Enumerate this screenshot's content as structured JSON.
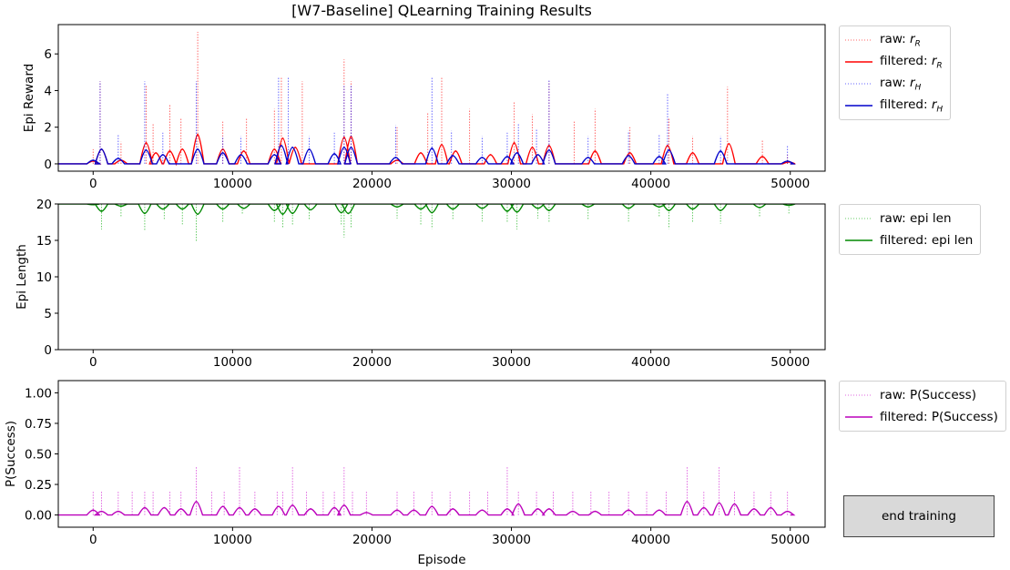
{
  "figure": {
    "title": "[W7-Baseline] QLearning Training Results",
    "button_label": "end training",
    "xlabel": "Episode"
  },
  "chart_data": [
    {
      "type": "line",
      "ylabel": "Epi Reward",
      "xlim": [
        -2500,
        52500
      ],
      "ylim": [
        -0.4,
        7.6
      ],
      "xticks": [
        0,
        10000,
        20000,
        30000,
        40000,
        50000
      ],
      "yticks": [
        0,
        2,
        4,
        6
      ],
      "grid": false,
      "legend_position": "outside-right",
      "legend": [
        "raw: r_R",
        "filtered: r_R",
        "raw: r_H",
        "filtered: r_H"
      ],
      "series": [
        {
          "name": "raw: r_R",
          "color": "#ff0000",
          "style": "dotted",
          "x": [
            0,
            500,
            2000,
            3800,
            4300,
            5500,
            6300,
            7500,
            9300,
            11000,
            13000,
            13500,
            15000,
            18000,
            18500,
            21800,
            24000,
            25000,
            27000,
            30200,
            31500,
            32700,
            34500,
            36000,
            38500,
            41300,
            43000,
            45500,
            48000,
            49800
          ],
          "y": [
            0.8,
            4.5,
            1.2,
            4.3,
            2.2,
            3.2,
            2.5,
            7.2,
            2.3,
            2.5,
            3.0,
            4.7,
            4.5,
            5.7,
            4.5,
            2.0,
            2.8,
            4.7,
            3.0,
            3.4,
            2.7,
            4.5,
            2.3,
            3.0,
            2.0,
            2.5,
            1.5,
            4.2,
            1.3,
            0.5
          ]
        },
        {
          "name": "filtered: r_R",
          "color": "#ff0000",
          "style": "solid",
          "x": [
            0,
            600,
            2000,
            3800,
            4500,
            5500,
            6400,
            7500,
            9300,
            10800,
            13000,
            13600,
            14500,
            18000,
            18500,
            21800,
            23500,
            25000,
            26000,
            28500,
            30200,
            31500,
            32700,
            36000,
            38500,
            41200,
            43000,
            45600,
            48000,
            49900
          ],
          "y": [
            0.15,
            0.8,
            0.2,
            1.15,
            0.6,
            0.7,
            0.8,
            1.6,
            0.8,
            0.7,
            0.8,
            1.4,
            0.9,
            1.45,
            1.5,
            0.2,
            0.6,
            1.05,
            0.7,
            0.5,
            1.15,
            0.9,
            1.0,
            0.7,
            0.6,
            1.0,
            0.6,
            1.1,
            0.4,
            0.1
          ]
        },
        {
          "name": "raw: r_H",
          "color": "#0000ff",
          "style": "dotted",
          "x": [
            500,
            1800,
            3700,
            5000,
            7400,
            9300,
            10600,
            13300,
            14000,
            15500,
            17300,
            18000,
            18500,
            21700,
            24300,
            25700,
            27900,
            29700,
            30500,
            31800,
            32700,
            35500,
            38400,
            40600,
            41200,
            45000,
            49800
          ],
          "y": [
            4.5,
            1.6,
            4.5,
            1.7,
            4.5,
            1.5,
            1.5,
            4.7,
            4.7,
            1.5,
            1.7,
            4.3,
            4.3,
            2.1,
            4.7,
            1.8,
            1.5,
            1.7,
            2.2,
            1.9,
            4.6,
            1.5,
            1.8,
            1.6,
            3.8,
            1.5,
            1.0
          ]
        },
        {
          "name": "filtered: r_H",
          "color": "#0000cc",
          "style": "solid",
          "x": [
            0,
            600,
            1800,
            3800,
            5000,
            7500,
            9300,
            10600,
            13000,
            13500,
            14300,
            15500,
            17300,
            18000,
            18500,
            21700,
            24300,
            25800,
            27900,
            29700,
            30400,
            31900,
            32700,
            35500,
            38400,
            40600,
            41300,
            45000,
            49800
          ],
          "y": [
            0.2,
            0.8,
            0.3,
            0.75,
            0.5,
            0.8,
            0.6,
            0.5,
            0.5,
            1.0,
            0.9,
            0.8,
            0.55,
            0.9,
            0.9,
            0.35,
            0.85,
            0.45,
            0.35,
            0.4,
            0.6,
            0.5,
            0.75,
            0.35,
            0.45,
            0.4,
            0.75,
            0.7,
            0.15
          ]
        }
      ]
    },
    {
      "type": "line",
      "ylabel": "Epi Length",
      "xlim": [
        -2500,
        52500
      ],
      "ylim": [
        0,
        20
      ],
      "xticks": [
        0,
        10000,
        20000,
        30000,
        40000,
        50000
      ],
      "yticks": [
        0,
        5,
        10,
        15,
        20
      ],
      "grid": false,
      "legend_position": "outside-right",
      "legend": [
        "raw: epi len",
        "filtered: epi len"
      ],
      "series": [
        {
          "name": "raw: epi len",
          "color": "#00aa00",
          "style": "dotted",
          "x": [
            600,
            2000,
            3700,
            5100,
            6400,
            7400,
            9300,
            10700,
            13000,
            13600,
            14300,
            15500,
            17800,
            18000,
            18500,
            21800,
            23500,
            24300,
            25800,
            27900,
            29700,
            30400,
            31900,
            32700,
            35500,
            38400,
            40600,
            41300,
            43000,
            45000,
            47800,
            49900
          ],
          "y": [
            16.5,
            18.2,
            16.4,
            17.8,
            17.2,
            14.8,
            17.5,
            18.5,
            17.4,
            16.7,
            17.0,
            17.8,
            17.0,
            15.4,
            16.7,
            18.0,
            17.0,
            16.6,
            17.9,
            17.6,
            17.5,
            16.5,
            18.0,
            17.4,
            17.9,
            17.6,
            18.2,
            16.6,
            17.5,
            17.3,
            18.2,
            18.7
          ]
        },
        {
          "name": "filtered: epi len",
          "color": "#008800",
          "style": "solid",
          "x": [
            0,
            600,
            2000,
            3700,
            5000,
            6400,
            7500,
            9300,
            10800,
            13000,
            13600,
            14300,
            15600,
            17800,
            18300,
            21800,
            23500,
            24300,
            25800,
            27900,
            29700,
            30400,
            31900,
            32700,
            35500,
            38400,
            40600,
            41300,
            43000,
            45000,
            47800,
            49900
          ],
          "y": [
            19.9,
            19.0,
            19.7,
            18.7,
            19.3,
            19.3,
            18.6,
            19.3,
            19.4,
            19.1,
            18.6,
            18.7,
            19.2,
            18.8,
            18.7,
            19.6,
            19.3,
            18.8,
            19.3,
            19.4,
            19.0,
            18.9,
            19.4,
            19.1,
            19.6,
            19.4,
            19.6,
            19.1,
            19.3,
            19.1,
            19.5,
            19.8
          ]
        }
      ]
    },
    {
      "type": "line",
      "ylabel": "P(Success)",
      "xlim": [
        -2500,
        52500
      ],
      "ylim": [
        -0.1,
        1.1
      ],
      "xticks": [
        0,
        10000,
        20000,
        30000,
        40000,
        50000
      ],
      "yticks": [
        0.0,
        0.25,
        0.5,
        0.75,
        1.0
      ],
      "grid": false,
      "legend_position": "outside-right",
      "legend": [
        "raw: P(Success)",
        "filtered: P(Success)"
      ],
      "series": [
        {
          "name": "raw: P(Success)",
          "color": "#cc00cc",
          "style": "dotted",
          "x": [
            0,
            600,
            1800,
            2800,
            3700,
            4300,
            5500,
            6300,
            7400,
            8500,
            9400,
            10500,
            11600,
            13200,
            13600,
            14300,
            15300,
            16500,
            17300,
            18000,
            18600,
            19600,
            21800,
            23000,
            24300,
            25600,
            27000,
            28300,
            29700,
            30500,
            31800,
            33000,
            34400,
            35700,
            37000,
            38400,
            39700,
            41100,
            42600,
            43800,
            44900,
            46000,
            47400,
            48600,
            49800
          ],
          "y": [
            0.2,
            0.2,
            0.2,
            0.2,
            0.2,
            0.2,
            0.2,
            0.2,
            0.4,
            0.2,
            0.2,
            0.4,
            0.2,
            0.2,
            0.2,
            0.4,
            0.2,
            0.2,
            0.2,
            0.4,
            0.2,
            0.2,
            0.2,
            0.2,
            0.2,
            0.2,
            0.2,
            0.2,
            0.4,
            0.2,
            0.2,
            0.2,
            0.2,
            0.2,
            0.2,
            0.2,
            0.2,
            0.2,
            0.4,
            0.2,
            0.4,
            0.2,
            0.2,
            0.2,
            0.2
          ]
        },
        {
          "name": "filtered: P(Success)",
          "color": "#bb00bb",
          "style": "solid",
          "x": [
            0,
            600,
            1800,
            3700,
            5100,
            6300,
            7400,
            9300,
            10500,
            11600,
            13300,
            14300,
            15600,
            17300,
            18000,
            19600,
            21800,
            23000,
            24300,
            25800,
            27900,
            29700,
            30500,
            31900,
            32700,
            34400,
            36000,
            38400,
            40600,
            42600,
            43800,
            44900,
            46000,
            47400,
            48600,
            49800
          ],
          "y": [
            0.04,
            0.03,
            0.03,
            0.06,
            0.06,
            0.05,
            0.11,
            0.07,
            0.06,
            0.05,
            0.07,
            0.08,
            0.05,
            0.06,
            0.08,
            0.02,
            0.04,
            0.04,
            0.07,
            0.05,
            0.04,
            0.05,
            0.09,
            0.05,
            0.05,
            0.03,
            0.03,
            0.04,
            0.04,
            0.11,
            0.06,
            0.1,
            0.09,
            0.05,
            0.06,
            0.03
          ]
        }
      ]
    }
  ]
}
